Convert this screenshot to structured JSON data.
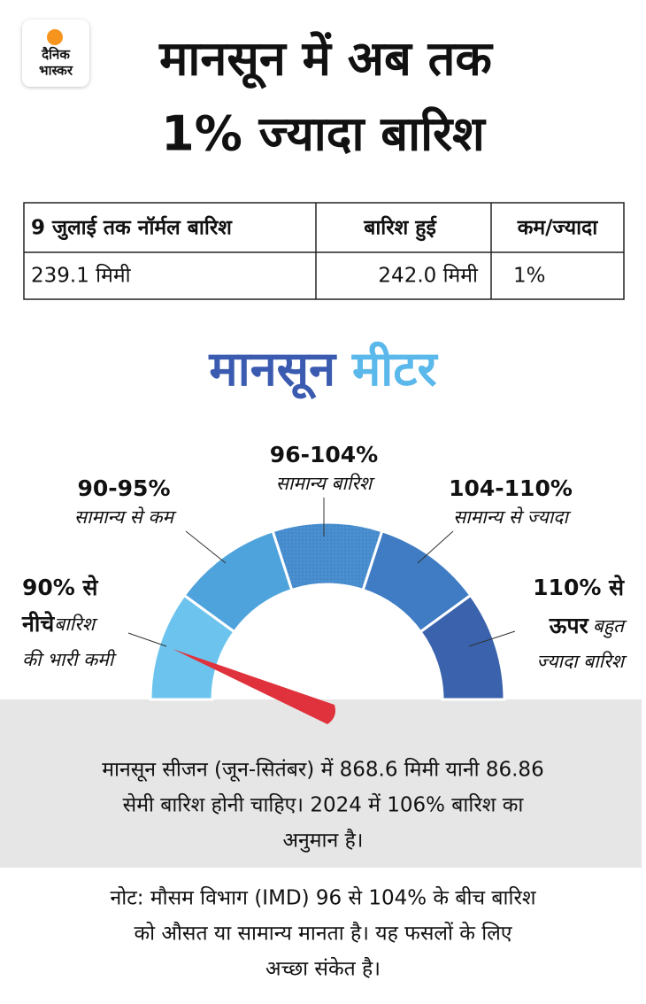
{
  "logo": {
    "line1": "दैनिक",
    "line2": "भास्कर"
  },
  "header": {
    "title_line1": "मानसून में अब तक",
    "title_line2": "1% ज्यादा बारिश"
  },
  "table": {
    "headers": [
      "9 जुलाई तक नॉर्मल बारिश",
      "बारिश हुई",
      "कम/ज्यादा"
    ],
    "rows": [
      [
        "239.1 मिमी",
        "242.0 मिमी",
        "1%"
      ]
    ]
  },
  "meter": {
    "title_word1": "मानसून",
    "title_word2": "मीटर",
    "segments": [
      {
        "range": "90% से",
        "label_bold": "नीचे",
        "label": "बारिश",
        "label2": "की भारी कमी"
      },
      {
        "range": "90-95%",
        "label": "सामान्य से कम"
      },
      {
        "range": "96-104%",
        "label": "सामान्य बारिश"
      },
      {
        "range": "104-110%",
        "label": "सामान्य से ज्यादा"
      },
      {
        "range": "110% से",
        "label_bold": "ऊपर",
        "label": "बहुत",
        "label2": "ज्यादा बारिश"
      }
    ]
  },
  "summary": {
    "lines": [
      "मानसून सीजन (जून-सितंबर) में 868.6 मिमी यानी 86.86",
      "सेमी बारिश होनी चाहिए। 2024 में 106% बारिश का",
      "अनुमान है।"
    ]
  },
  "note": {
    "lines": [
      "नोट: मौसम विभाग (IMD) 96 से 104% के बीच बारिश",
      "को औसत या सामान्य मानता है। यह फसलों के लिए",
      "अच्छा संकेत है।"
    ]
  }
}
